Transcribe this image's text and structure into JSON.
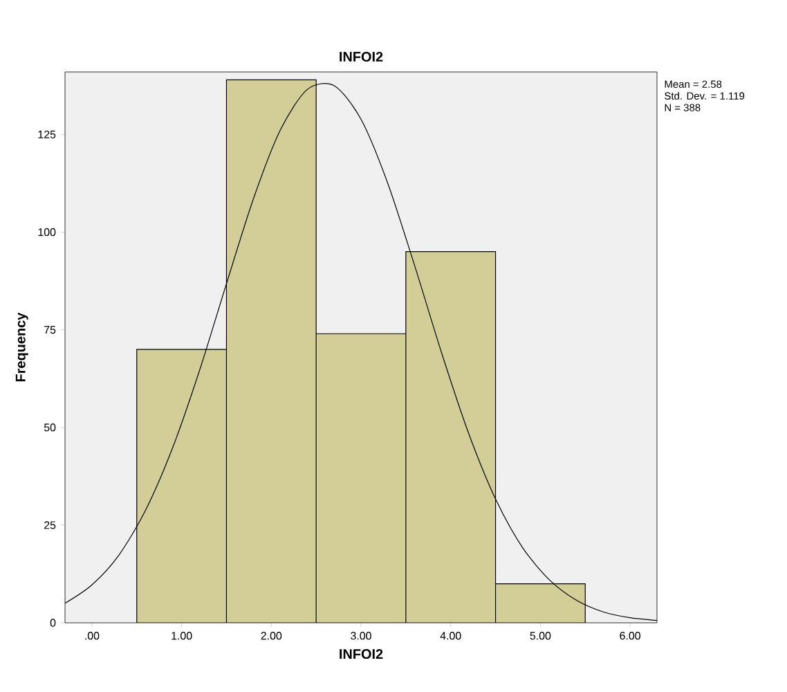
{
  "chart_data": {
    "type": "histogram",
    "title": "INFOI2",
    "xlabel": "INFOI2",
    "ylabel": "Frequency",
    "bins": [
      0.5,
      1.5,
      2.5,
      3.5,
      4.5,
      5.5
    ],
    "values": [
      70,
      139,
      74,
      95,
      10
    ],
    "color": "#d3ce97",
    "series": [
      {
        "type": "line",
        "color": "#000000",
        "x": [
          -0.3,
          0.0,
          0.3,
          0.6,
          0.9,
          1.2,
          1.5,
          1.8,
          2.1,
          2.4,
          2.7,
          3.0,
          3.3,
          3.6,
          3.9,
          4.2,
          4.5,
          4.8,
          5.1,
          5.4,
          5.7,
          6.0,
          6.3
        ],
        "values": [
          5.0,
          9.7,
          17.3,
          28.9,
          44.8,
          64.6,
          86.8,
          108.5,
          126.1,
          136.5,
          137.5,
          128.9,
          112.4,
          91.3,
          69.0,
          48.5,
          31.7,
          19.3,
          11.0,
          5.8,
          2.8,
          1.3,
          0.6
        ]
      }
    ],
    "xlim": [
      -0.3,
      6.3
    ],
    "ylim": [
      0,
      141
    ],
    "xticks": [
      {
        "value": 0,
        "label": ".00"
      },
      {
        "value": 1,
        "label": "1.00"
      },
      {
        "value": 2,
        "label": "2.00"
      },
      {
        "value": 3,
        "label": "3.00"
      },
      {
        "value": 4,
        "label": "4.00"
      },
      {
        "value": 5,
        "label": "5.00"
      },
      {
        "value": 6,
        "label": "6.00"
      }
    ],
    "yticks": [
      0,
      25,
      50,
      75,
      100,
      125
    ],
    "annotations": [
      "Mean = 2.58",
      "Std. Dev. = 1.119",
      "N = 388"
    ]
  }
}
